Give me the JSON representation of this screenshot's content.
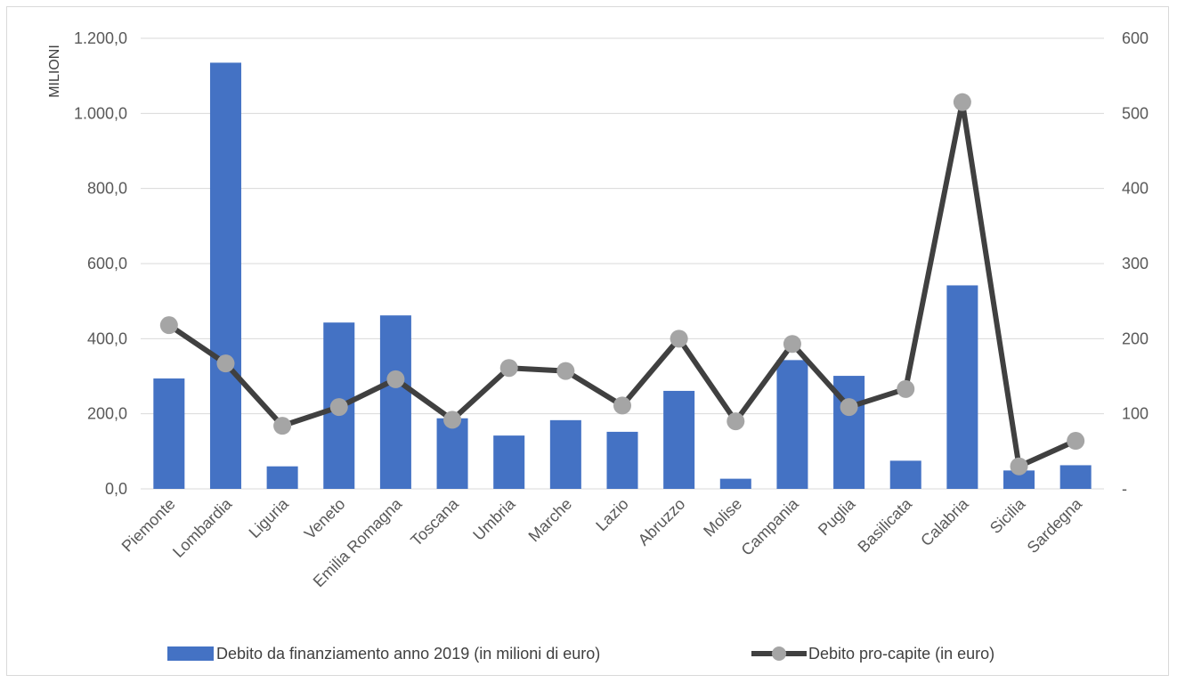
{
  "chart_data": {
    "type": "bar",
    "title": "",
    "xlabel": "",
    "ylabel": "MILIONI",
    "categories": [
      "Piemonte",
      "Lombardia",
      "Liguria",
      "Veneto",
      "Emilia Romagna",
      "Toscana",
      "Umbria",
      "Marche",
      "Lazio",
      "Abruzzo",
      "Molise",
      "Campania",
      "Puglia",
      "Basilicata",
      "Calabria",
      "Sicilia",
      "Sardegna"
    ],
    "series": [
      {
        "name": "Debito da finanziamento anno 2019 (in milioni di euro)",
        "type": "bar",
        "axis": "left",
        "color": "#4472c4",
        "values": [
          294,
          1135,
          60,
          443,
          462,
          188,
          142,
          183,
          152,
          261,
          27,
          343,
          301,
          75,
          542,
          49,
          63
        ]
      },
      {
        "name": "Debito pro-capite (in euro)",
        "type": "line",
        "axis": "right",
        "color": "#404040",
        "marker_color": "#a5a5a5",
        "values": [
          218,
          167,
          84,
          109,
          146,
          92,
          161,
          157,
          111,
          200,
          90,
          193,
          109,
          133,
          515,
          30,
          64
        ]
      }
    ],
    "y_left": {
      "ylim": [
        0,
        1200
      ],
      "ticks": [
        "0,0",
        "200,0",
        "400,0",
        "600,0",
        "800,0",
        "1.000,0",
        "1.200,0"
      ]
    },
    "y_right": {
      "ylim": [
        0,
        600
      ],
      "ticks": [
        "-",
        "100",
        "200",
        "300",
        "400",
        "500",
        "600"
      ]
    },
    "grid": true,
    "legend_position": "bottom"
  }
}
